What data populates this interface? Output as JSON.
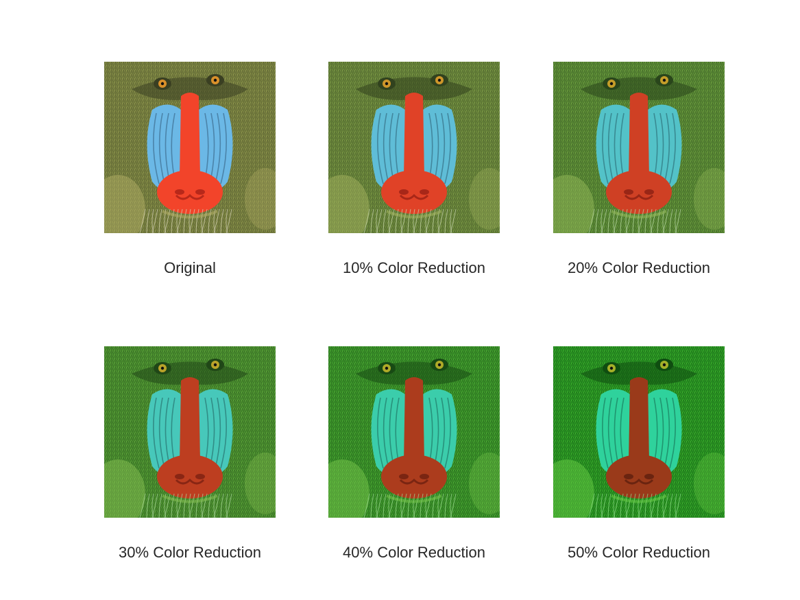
{
  "panels": [
    {
      "caption": "Original",
      "reduction": 0.0
    },
    {
      "caption": "10% Color Reduction",
      "reduction": 0.1
    },
    {
      "caption": "20% Color Reduction",
      "reduction": 0.2
    },
    {
      "caption": "30% Color Reduction",
      "reduction": 0.3
    },
    {
      "caption": "40% Color Reduction",
      "reduction": 0.4
    },
    {
      "caption": "50% Color Reduction",
      "reduction": 0.5
    }
  ],
  "colors": {
    "fur_base": "#6f7a3a",
    "fur_green": "#1f8a1c",
    "cheek_blue": "#6bb8e6",
    "cheek_green": "#2fd29c",
    "nose_red": "#f2442a",
    "nose_brown": "#9a3a1a",
    "eye": "#d9902a"
  }
}
